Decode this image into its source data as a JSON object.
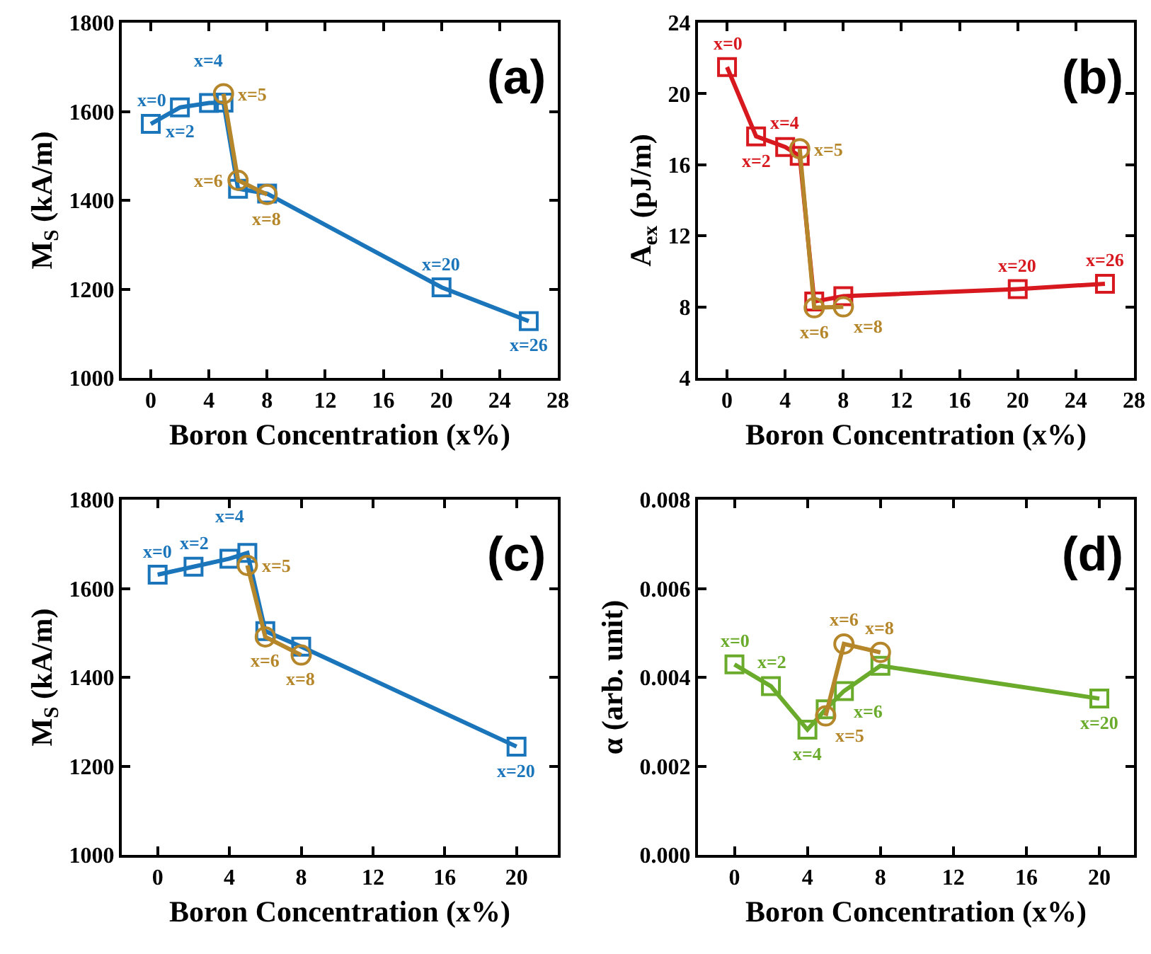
{
  "chart_data": [
    {
      "type": "line",
      "xlabel": "Boron Concentration (x%)",
      "ylabel": "M$_{S}$ (kA/m)",
      "xlim": [
        -2,
        28
      ],
      "xticks": [
        0,
        4,
        8,
        12,
        16,
        20,
        24,
        28
      ],
      "ylim": [
        1000,
        1800
      ],
      "yticks": [
        1000,
        1200,
        1400,
        1600,
        1800
      ],
      "grid": false,
      "line_style": "solid",
      "series": [
        {
          "color": "#1b75bb",
          "marker": "square",
          "x": [
            0,
            2,
            4,
            5,
            6,
            8,
            20,
            26
          ],
          "values": [
            1572,
            1609,
            1619,
            1620,
            1426,
            1415,
            1204,
            1128
          ]
        },
        {
          "color": "#b5862a",
          "marker": "circle",
          "x": [
            5,
            6,
            8
          ],
          "values": [
            1640,
            1445,
            1413
          ]
        }
      ],
      "annotations": [
        "(a)",
        {
          "text": "x=0",
          "x": 0,
          "y": 1572
        },
        {
          "text": "x=2",
          "x": 2,
          "y": 1609
        },
        {
          "text": "x=4",
          "x": 4,
          "y": 1619
        },
        {
          "text": "x=20",
          "x": 20,
          "y": 1204
        },
        {
          "text": "x=26",
          "x": 26,
          "y": 1128
        },
        {
          "text": "x=5",
          "x": 5,
          "y": 1640
        },
        {
          "text": "x=6",
          "x": 6,
          "y": 1445
        },
        {
          "text": "x=8",
          "x": 8,
          "y": 1413
        }
      ]
    },
    {
      "type": "line",
      "xlabel": "Boron Concentration (x%)",
      "ylabel": "A$_{ex}$ (pJ/m)",
      "xlim": [
        -2,
        28
      ],
      "xticks": [
        0,
        4,
        8,
        12,
        16,
        20,
        24,
        28
      ],
      "ylim": [
        4,
        24
      ],
      "yticks": [
        4,
        8,
        12,
        16,
        20,
        24
      ],
      "grid": false,
      "line_style": "solid",
      "series": [
        {
          "color": "#d7191f",
          "marker": "square",
          "x": [
            0,
            2,
            4,
            5,
            6,
            8,
            20,
            26
          ],
          "values": [
            21.5,
            17.6,
            17.0,
            16.5,
            8.3,
            8.6,
            9.0,
            9.3
          ]
        },
        {
          "color": "#b5862a",
          "marker": "circle",
          "x": [
            5,
            6,
            8
          ],
          "values": [
            16.9,
            7.95,
            8.0
          ]
        }
      ],
      "annotations": [
        "(b)",
        {
          "text": "x=0",
          "x": 0,
          "y": 21.5
        },
        {
          "text": "x=2",
          "x": 2,
          "y": 17.6
        },
        {
          "text": "x=4",
          "x": 4,
          "y": 17.0
        },
        {
          "text": "x=20",
          "x": 20,
          "y": 9.0
        },
        {
          "text": "x=26",
          "x": 26,
          "y": 9.3
        },
        {
          "text": "x=5",
          "x": 5,
          "y": 16.9
        },
        {
          "text": "x=6",
          "x": 6,
          "y": 7.95
        },
        {
          "text": "x=8",
          "x": 8,
          "y": 8.0
        }
      ]
    },
    {
      "type": "line",
      "xlabel": "Boron Concentration (x%)",
      "ylabel": "M$_{S}$ (kA/m)",
      "xlim": [
        -2,
        22.3
      ],
      "xticks": [
        0,
        4,
        8,
        12,
        16,
        20
      ],
      "ylim": [
        1000,
        1800
      ],
      "yticks": [
        1000,
        1200,
        1400,
        1600,
        1800
      ],
      "grid": false,
      "line_style": "solid",
      "series": [
        {
          "color": "#1b75bb",
          "marker": "square",
          "x": [
            0,
            2,
            4,
            5,
            6,
            8,
            20
          ],
          "values": [
            1631,
            1649,
            1667,
            1680,
            1504,
            1469,
            1244
          ]
        },
        {
          "color": "#b5862a",
          "marker": "circle",
          "x": [
            5,
            6,
            8
          ],
          "values": [
            1652,
            1491,
            1450
          ]
        }
      ],
      "annotations": [
        "(c)",
        {
          "text": "x=0",
          "x": 0,
          "y": 1631
        },
        {
          "text": "x=2",
          "x": 2,
          "y": 1649
        },
        {
          "text": "x=4",
          "x": 4,
          "y": 1667
        },
        {
          "text": "x=20",
          "x": 20,
          "y": 1244
        },
        {
          "text": "x=5",
          "x": 5,
          "y": 1652
        },
        {
          "text": "x=6",
          "x": 6,
          "y": 1491
        },
        {
          "text": "x=8",
          "x": 8,
          "y": 1450
        }
      ]
    },
    {
      "type": "line",
      "xlabel": "Boron Concentration (x%)",
      "ylabel": "α (arb. unit)",
      "xlim": [
        -2,
        21.9
      ],
      "xticks": [
        0,
        4,
        8,
        12,
        16,
        20
      ],
      "ylim": [
        0,
        0.008
      ],
      "yticks": [
        {
          "value": 0,
          "label": "0.000"
        },
        0.002,
        0.004,
        0.006,
        0.008
      ],
      "grid": false,
      "line_style": "solid",
      "series": [
        {
          "color": "#6aab2b",
          "marker": "square",
          "x": [
            0,
            2,
            4,
            5,
            6,
            8,
            20
          ],
          "values": [
            0.00429,
            0.0038,
            0.00282,
            0.00328,
            0.00369,
            0.00426,
            0.00352
          ]
        },
        {
          "color": "#b5862a",
          "marker": "circle",
          "x": [
            5,
            6,
            8
          ],
          "values": [
            0.00313,
            0.00475,
            0.00456
          ]
        }
      ],
      "annotations": [
        "(d)",
        {
          "text": "x=0",
          "x": 0,
          "y": 0.00429
        },
        {
          "text": "x=2",
          "x": 2,
          "y": 0.0038
        },
        {
          "text": "x=4",
          "x": 4,
          "y": 0.00282
        },
        {
          "text": "x=6",
          "x": 6,
          "y": 0.00369
        },
        {
          "text": "x=20",
          "x": 20,
          "y": 0.00352
        },
        {
          "text": "x=5",
          "x": 5,
          "y": 0.00313
        },
        {
          "text": "x=6",
          "x": 6,
          "y": 0.00475
        },
        {
          "text": "x=8",
          "x": 8,
          "y": 0.00456
        }
      ]
    }
  ]
}
